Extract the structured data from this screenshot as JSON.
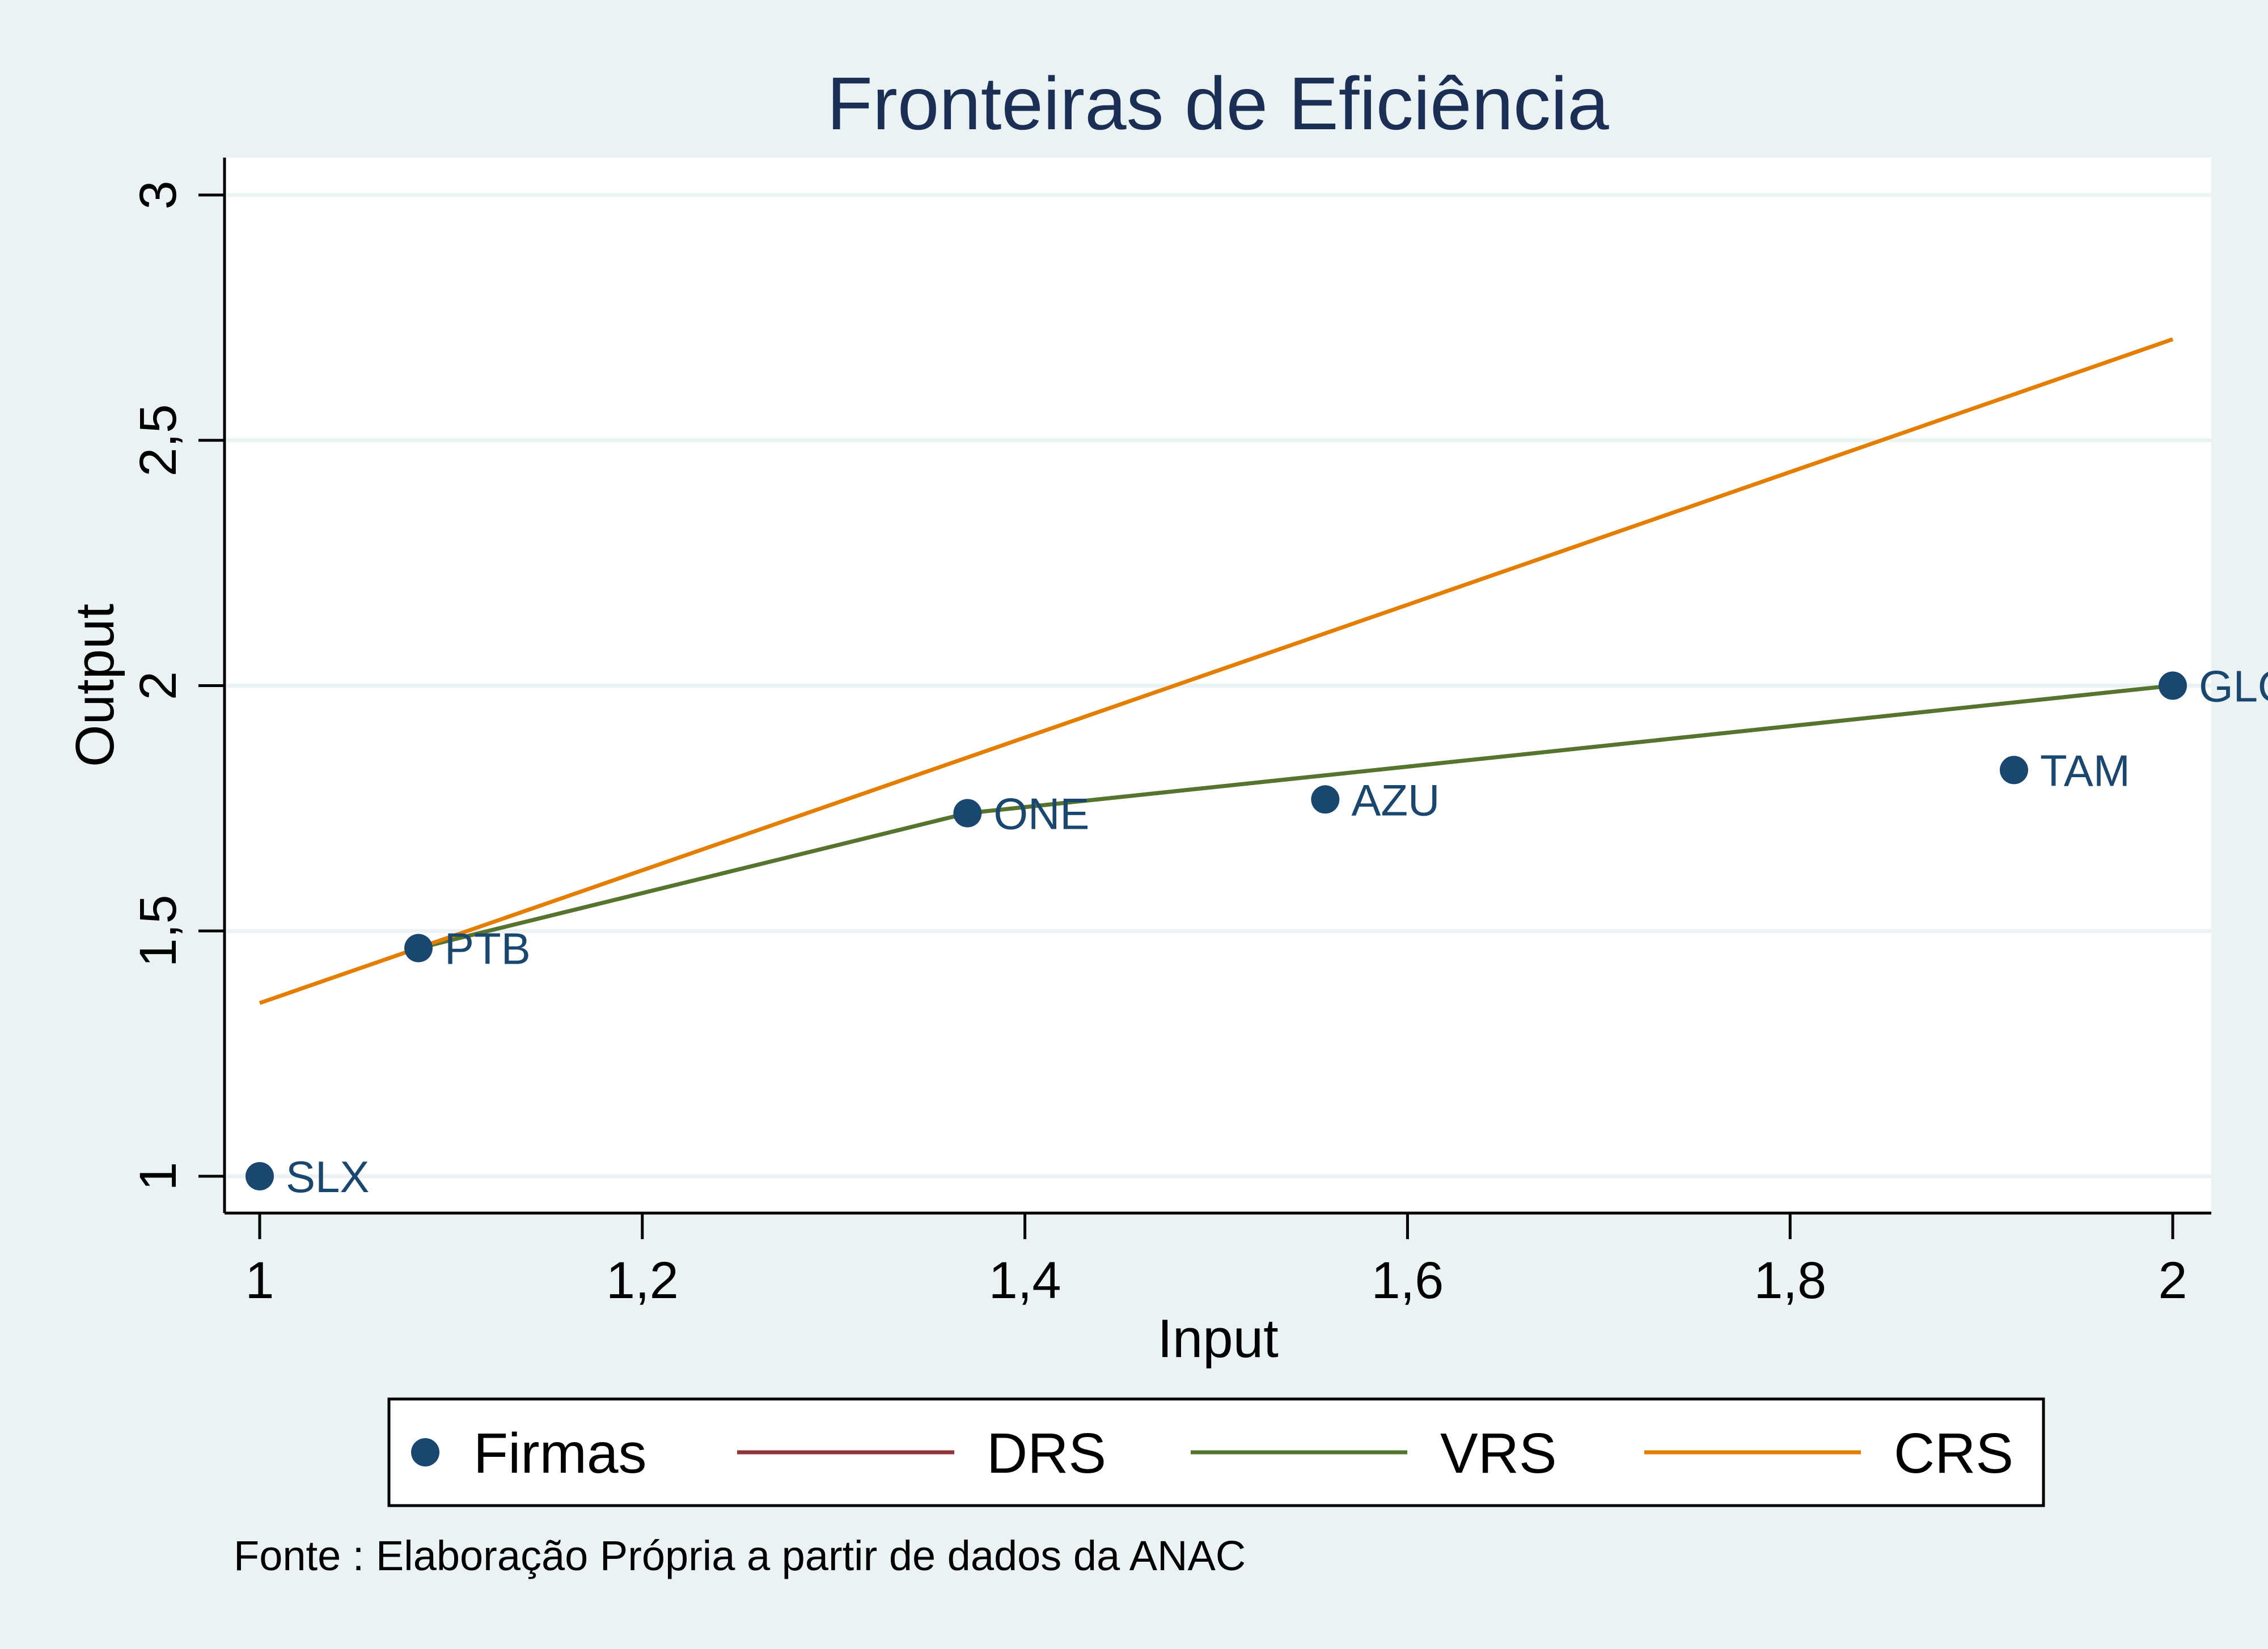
{
  "chart_data": {
    "type": "scatter",
    "title": "Fronteiras de Eficiência",
    "xlabel": "Input",
    "ylabel": "Output",
    "xlim": [
      1,
      2
    ],
    "ylim": [
      1,
      3
    ],
    "x_ticks": [
      1,
      1.2,
      1.4,
      1.6,
      1.8,
      2
    ],
    "x_tick_labels": [
      "1",
      "1,2",
      "1,4",
      "1,6",
      "1,8",
      "2"
    ],
    "y_ticks": [
      1,
      1.5,
      2,
      2.5,
      3
    ],
    "y_tick_labels": [
      "1",
      "1,5",
      "2",
      "2,5",
      "3"
    ],
    "grid": "horizontal",
    "points": [
      {
        "label": "SLX",
        "x": 1.0,
        "y": 1.0
      },
      {
        "label": "PTB",
        "x": 1.083,
        "y": 1.465
      },
      {
        "label": "ONE",
        "x": 1.37,
        "y": 1.74
      },
      {
        "label": "AZU",
        "x": 1.557,
        "y": 1.768
      },
      {
        "label": "TAM",
        "x": 1.917,
        "y": 1.828
      },
      {
        "label": "GLO",
        "x": 2.0,
        "y": 2.0
      }
    ],
    "series": [
      {
        "name": "Firmas",
        "kind": "scatter",
        "color": "#1a476f"
      },
      {
        "name": "DRS",
        "kind": "line",
        "color": "#90353b",
        "points": [
          [
            1.083,
            1.465
          ],
          [
            1.37,
            1.74
          ],
          [
            2.0,
            2.0
          ]
        ]
      },
      {
        "name": "VRS",
        "kind": "line",
        "color": "#55752f",
        "points": [
          [
            1.083,
            1.465
          ],
          [
            1.37,
            1.74
          ],
          [
            2.0,
            2.0
          ]
        ]
      },
      {
        "name": "CRS",
        "kind": "line",
        "color": "#e37e00",
        "points": [
          [
            1.0,
            1.353
          ],
          [
            2.0,
            2.706
          ]
        ]
      }
    ],
    "legend_position": "bottom",
    "note": "Fonte : Elaboração Própria a partir de dados da ANAC"
  }
}
